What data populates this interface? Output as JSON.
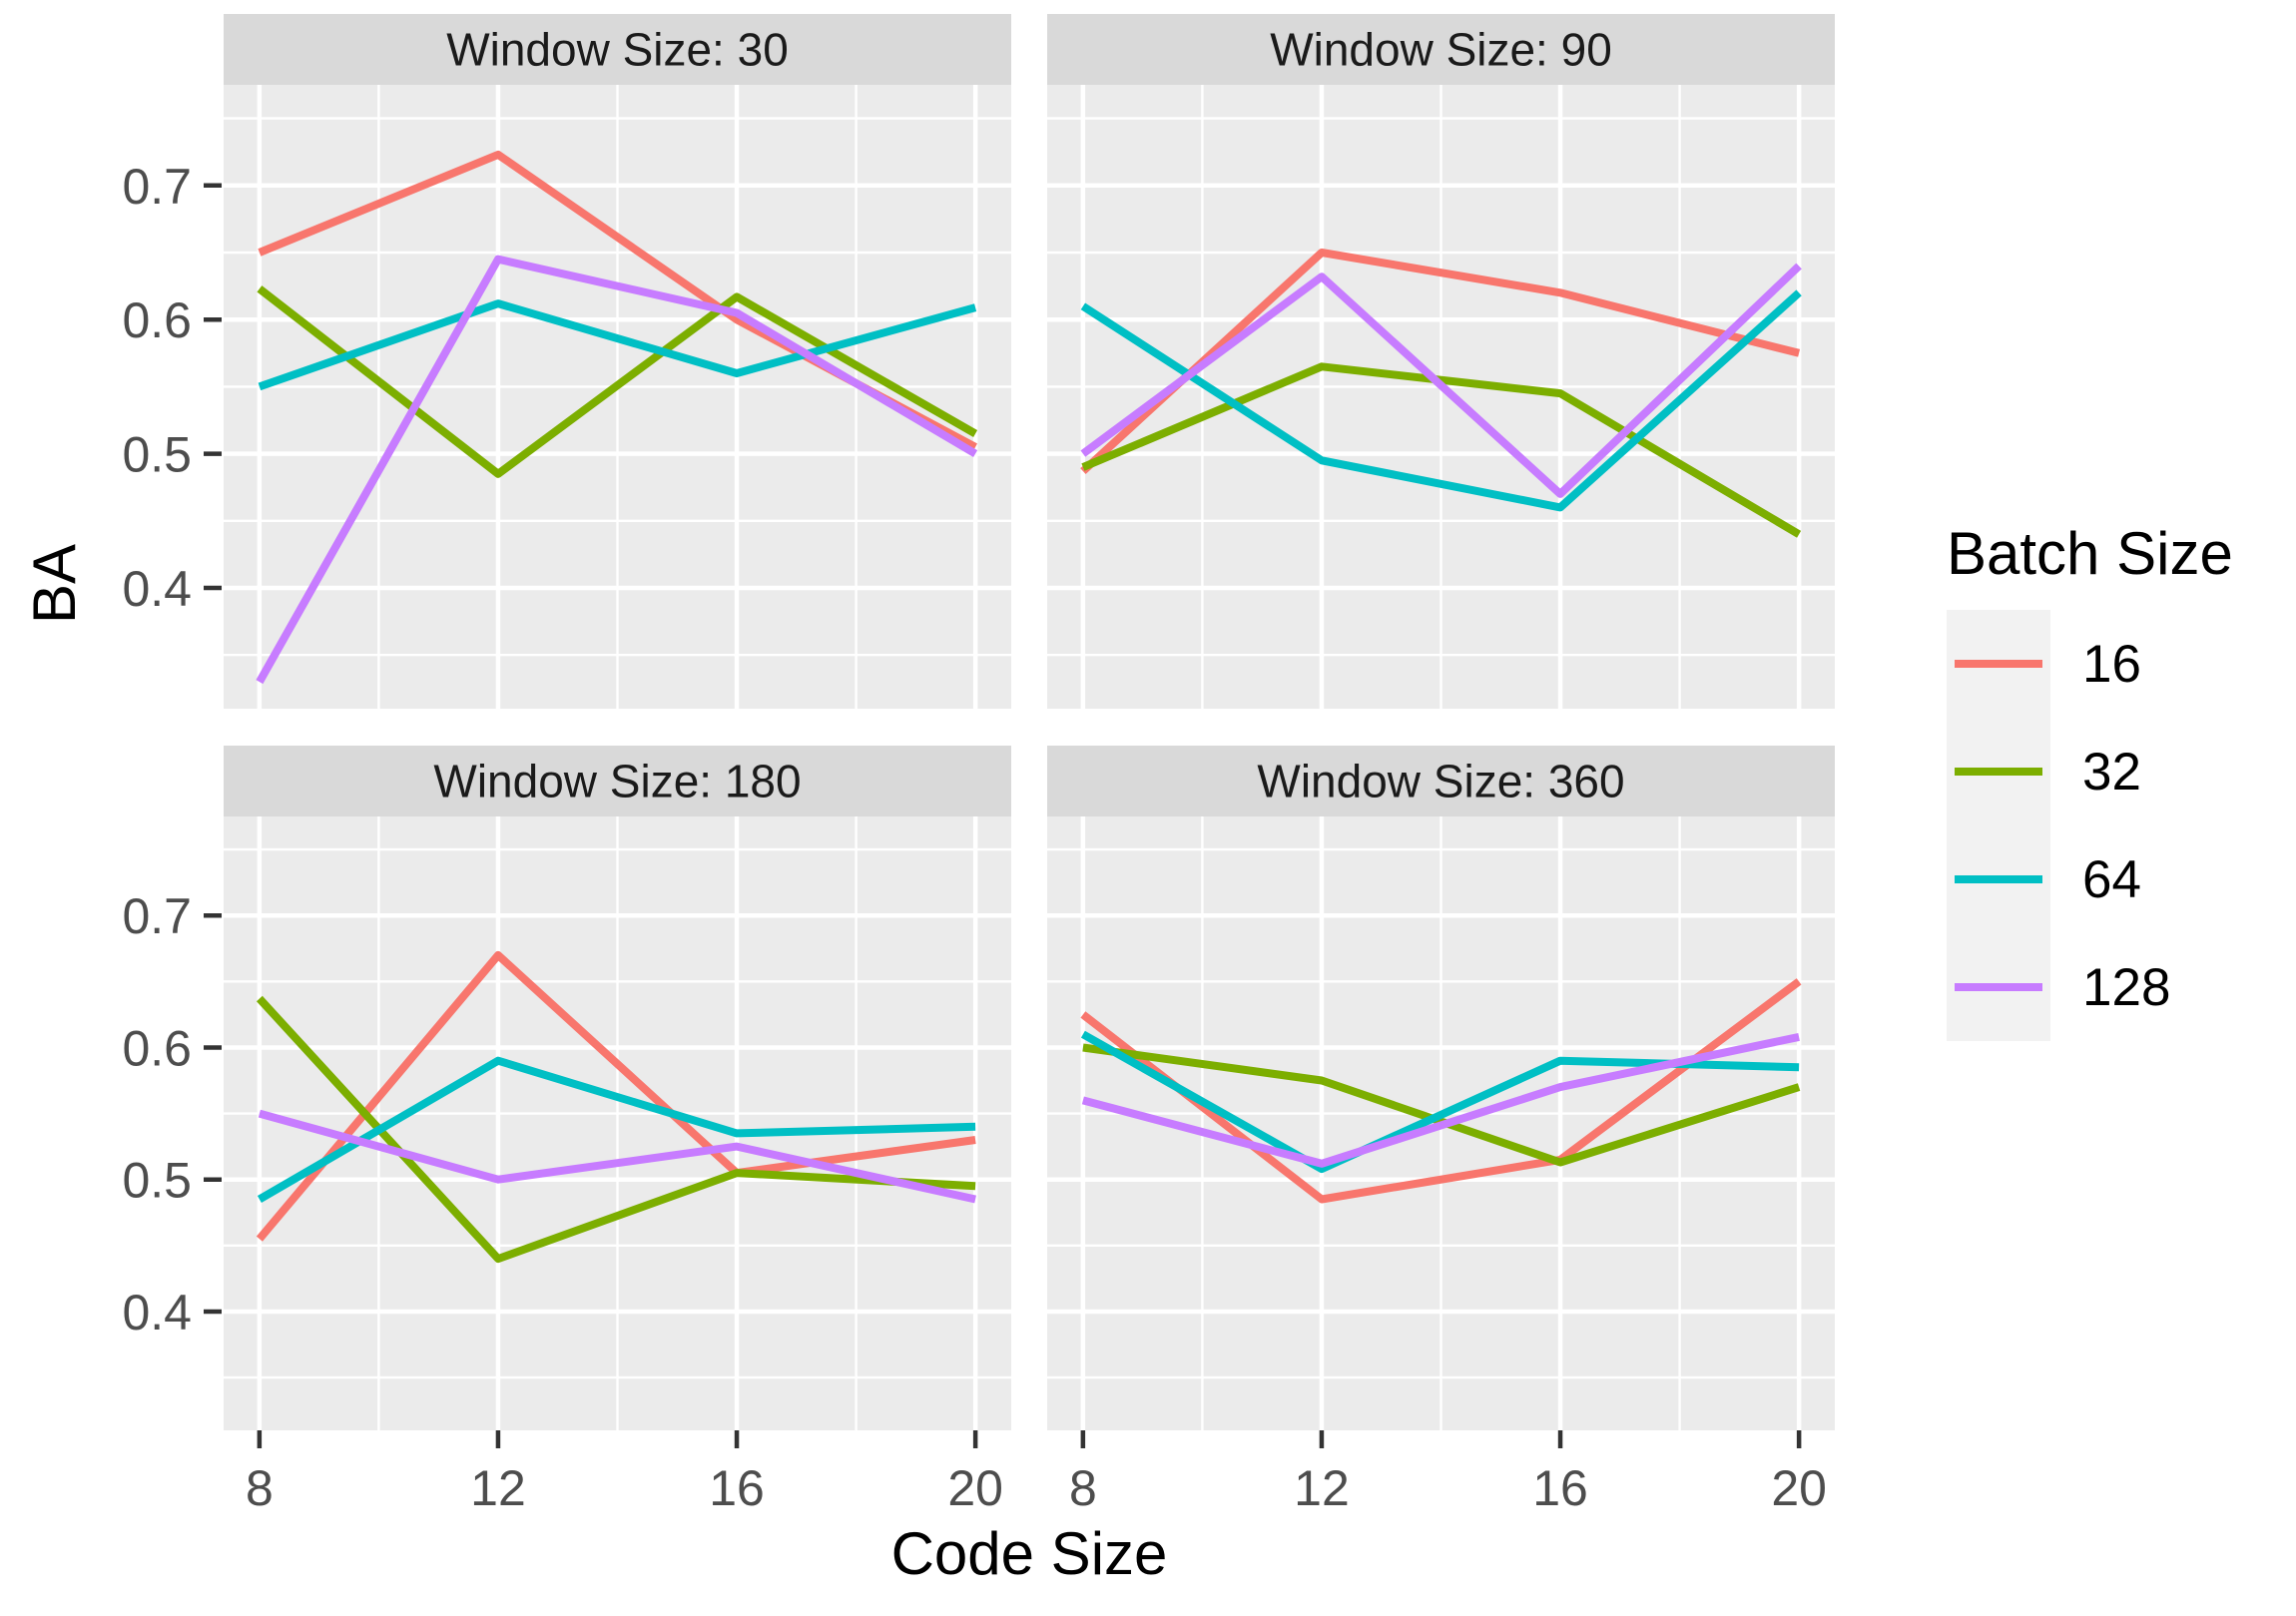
{
  "figure": {
    "background": "#FFFFFF"
  },
  "axes": {
    "x_title": "Code Size",
    "y_title": "BA",
    "x_tick_labels": [
      "8",
      "12",
      "16",
      "20"
    ],
    "y_tick_labels": [
      "0.7",
      "0.6",
      "0.5",
      "0.4"
    ]
  },
  "legend": {
    "title": "Batch Size",
    "items": [
      {
        "label": "16",
        "color": "#F8766D"
      },
      {
        "label": "32",
        "color": "#7CAE00"
      },
      {
        "label": "64",
        "color": "#00BFC4"
      },
      {
        "label": "128",
        "color": "#C77CFF"
      }
    ]
  },
  "chart_data": {
    "type": "line",
    "title": "",
    "xlabel": "Code Size",
    "ylabel": "BA",
    "legend_title": "Batch Size",
    "x": [
      8,
      12,
      16,
      20
    ],
    "x_ticks": [
      8,
      12,
      16,
      20
    ],
    "y_ticks": [
      0.7,
      0.6,
      0.5,
      0.4
    ],
    "x_minor": [
      10,
      14,
      18
    ],
    "y_minor": [
      0.75,
      0.65,
      0.55,
      0.45,
      0.35
    ],
    "xlim": [
      7.4,
      20.6
    ],
    "ylim": [
      0.31,
      0.775
    ],
    "grid": "on",
    "legend_position": "right",
    "facets": [
      {
        "title": "Window Size: 30",
        "series": [
          {
            "name": "16",
            "color": "#F8766D",
            "values": [
              0.65,
              0.723,
              0.6,
              0.505
            ]
          },
          {
            "name": "32",
            "color": "#7CAE00",
            "values": [
              0.623,
              0.485,
              0.617,
              0.515
            ]
          },
          {
            "name": "64",
            "color": "#00BFC4",
            "values": [
              0.55,
              0.612,
              0.56,
              0.609
            ]
          },
          {
            "name": "128",
            "color": "#C77CFF",
            "values": [
              0.33,
              0.645,
              0.605,
              0.5
            ]
          }
        ]
      },
      {
        "title": "Window Size: 90",
        "series": [
          {
            "name": "16",
            "color": "#F8766D",
            "values": [
              0.487,
              0.65,
              0.62,
              0.575
            ]
          },
          {
            "name": "32",
            "color": "#7CAE00",
            "values": [
              0.49,
              0.565,
              0.545,
              0.44
            ]
          },
          {
            "name": "64",
            "color": "#00BFC4",
            "values": [
              0.61,
              0.495,
              0.46,
              0.62
            ]
          },
          {
            "name": "128",
            "color": "#C77CFF",
            "values": [
              0.5,
              0.632,
              0.47,
              0.64
            ]
          }
        ]
      },
      {
        "title": "Window Size: 180",
        "series": [
          {
            "name": "16",
            "color": "#F8766D",
            "values": [
              0.455,
              0.67,
              0.505,
              0.53
            ]
          },
          {
            "name": "32",
            "color": "#7CAE00",
            "values": [
              0.637,
              0.44,
              0.505,
              0.495
            ]
          },
          {
            "name": "64",
            "color": "#00BFC4",
            "values": [
              0.485,
              0.59,
              0.535,
              0.54
            ]
          },
          {
            "name": "128",
            "color": "#C77CFF",
            "values": [
              0.55,
              0.5,
              0.525,
              0.485
            ]
          }
        ]
      },
      {
        "title": "Window Size: 360",
        "series": [
          {
            "name": "16",
            "color": "#F8766D",
            "values": [
              0.625,
              0.485,
              0.515,
              0.65
            ]
          },
          {
            "name": "32",
            "color": "#7CAE00",
            "values": [
              0.6,
              0.575,
              0.513,
              0.57
            ]
          },
          {
            "name": "64",
            "color": "#00BFC4",
            "values": [
              0.61,
              0.508,
              0.59,
              0.585
            ]
          },
          {
            "name": "128",
            "color": "#C77CFF",
            "values": [
              0.56,
              0.512,
              0.57,
              0.608
            ]
          }
        ]
      }
    ],
    "style": {
      "panel_bg": "#EBEBEB",
      "strip_bg": "#D9D9D9",
      "grid_color": "#FFFFFF",
      "tick_color": "#333333",
      "tick_label_color": "#4D4D4D",
      "strip_text_color": "#1A1A1A",
      "title_color": "#000000",
      "legend_key_bg": "#F2F2F2"
    }
  }
}
